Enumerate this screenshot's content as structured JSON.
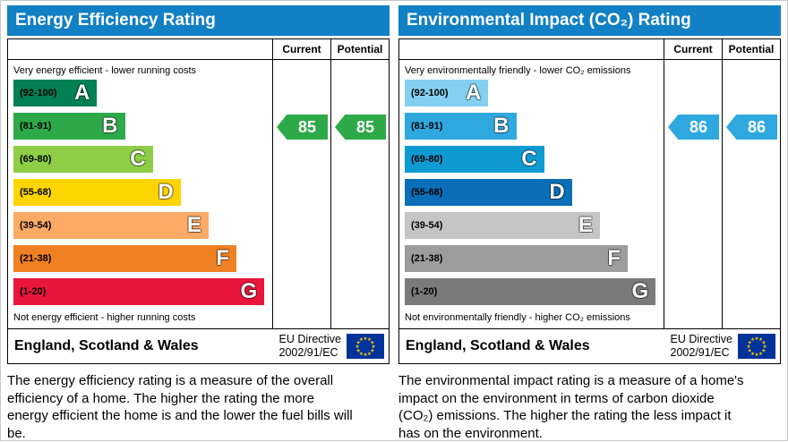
{
  "colors": {
    "header_bg": "#1180c4",
    "header_text": "#ffffff",
    "border": "#000000",
    "eu_flag_bg": "#003399",
    "eu_star": "#ffcc00"
  },
  "chart_data": [
    {
      "type": "bar",
      "orientation": "horizontal",
      "title": "Energy Efficiency Rating",
      "columns": [
        "Current",
        "Potential"
      ],
      "top_note": "Very energy efficient - lower running costs",
      "bottom_note": "Not energy efficient - higher running costs",
      "bands": [
        {
          "letter": "A",
          "range": "(92-100)",
          "min": 92,
          "max": 100,
          "color": "#008054",
          "width_pct": 33
        },
        {
          "letter": "B",
          "range": "(81-91)",
          "min": 81,
          "max": 91,
          "color": "#2ea949",
          "width_pct": 44
        },
        {
          "letter": "C",
          "range": "(69-80)",
          "min": 69,
          "max": 80,
          "color": "#8dce46",
          "width_pct": 55
        },
        {
          "letter": "D",
          "range": "(55-68)",
          "min": 55,
          "max": 68,
          "color": "#ffd500",
          "width_pct": 66
        },
        {
          "letter": "E",
          "range": "(39-54)",
          "min": 39,
          "max": 54,
          "color": "#fcaa65",
          "width_pct": 77
        },
        {
          "letter": "F",
          "range": "(21-38)",
          "min": 21,
          "max": 38,
          "color": "#ef8023",
          "width_pct": 88
        },
        {
          "letter": "G",
          "range": "(1-20)",
          "min": 1,
          "max": 20,
          "color": "#e9153b",
          "width_pct": 99
        }
      ],
      "current": {
        "value": 85,
        "band": "B"
      },
      "potential": {
        "value": 85,
        "band": "B"
      },
      "arrow_color": "#2ea949",
      "footer": {
        "region": "England, Scotland & Wales",
        "directive_line1": "EU Directive",
        "directive_line2": "2002/91/EC"
      },
      "description": "The energy efficiency rating is a measure of the overall efficiency of a home. The higher the rating the more energy efficient the home is and the lower the fuel bills will be."
    },
    {
      "type": "bar",
      "orientation": "horizontal",
      "title": "Environmental Impact (CO₂) Rating",
      "columns": [
        "Current",
        "Potential"
      ],
      "top_note": "Very environmentally friendly - lower CO₂ emissions",
      "bottom_note": "Not environmentally friendly - higher CO₂ emissions",
      "bands": [
        {
          "letter": "A",
          "range": "(92-100)",
          "min": 92,
          "max": 100,
          "color": "#84d0f0",
          "width_pct": 33
        },
        {
          "letter": "B",
          "range": "(81-91)",
          "min": 81,
          "max": 91,
          "color": "#2fa8e0",
          "width_pct": 44
        },
        {
          "letter": "C",
          "range": "(69-80)",
          "min": 69,
          "max": 80,
          "color": "#0f9ad2",
          "width_pct": 55
        },
        {
          "letter": "D",
          "range": "(55-68)",
          "min": 55,
          "max": 68,
          "color": "#0a6fb8",
          "width_pct": 66
        },
        {
          "letter": "E",
          "range": "(39-54)",
          "min": 39,
          "max": 54,
          "color": "#c5c5c5",
          "width_pct": 77
        },
        {
          "letter": "F",
          "range": "(21-38)",
          "min": 21,
          "max": 38,
          "color": "#9c9c9c",
          "width_pct": 88
        },
        {
          "letter": "G",
          "range": "(1-20)",
          "min": 1,
          "max": 20,
          "color": "#7a7a7a",
          "width_pct": 99
        }
      ],
      "current": {
        "value": 86,
        "band": "B"
      },
      "potential": {
        "value": 86,
        "band": "B"
      },
      "arrow_color": "#2fa8e0",
      "footer": {
        "region": "England, Scotland & Wales",
        "directive_line1": "EU Directive",
        "directive_line2": "2002/91/EC"
      },
      "description": "The environmental impact rating is a measure of a home's impact on the environment in terms of carbon dioxide (CO₂) emissions. The higher the rating the less impact it has on the environment."
    }
  ]
}
